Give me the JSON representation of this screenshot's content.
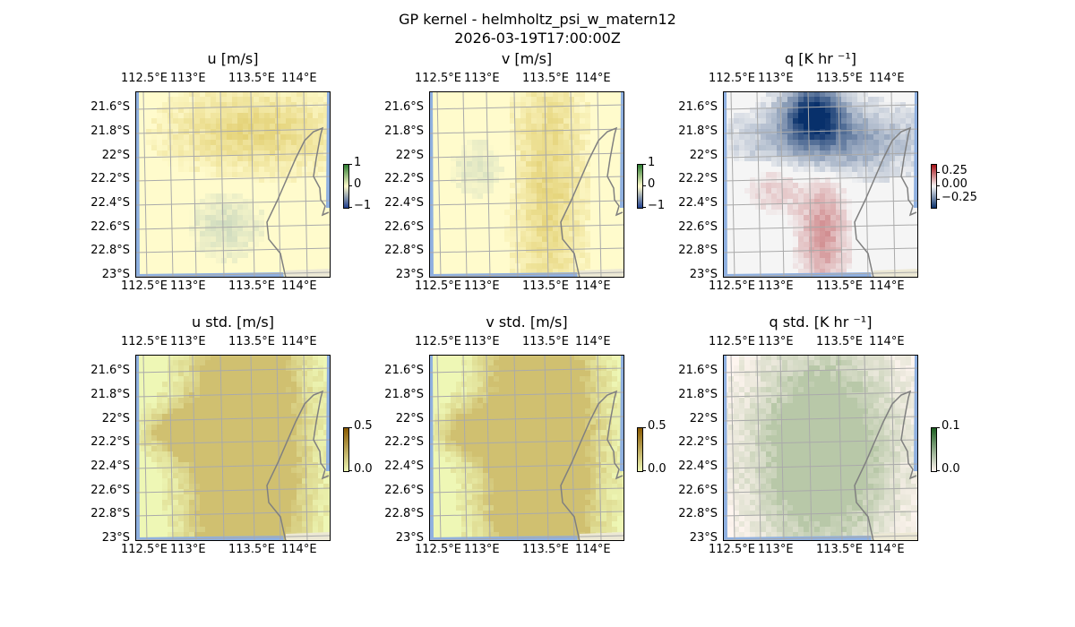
{
  "figure": {
    "title": "GP kernel - helmholtz_psi_w_matern12",
    "subtitle": "2026-03-19T17:00:00Z"
  },
  "chart_data": [
    {
      "type": "heatmap",
      "title": "u [m/s]",
      "colorbar_ticks": [
        "1",
        "0",
        "−1"
      ],
      "clim": [
        -1,
        1
      ],
      "x_ticks": [
        "112.5°E",
        "113°E",
        "113.5°E",
        "114°E"
      ],
      "y_ticks": [
        "21.6°S",
        "21.8°S",
        "22°S",
        "22.2°S",
        "22.4°S",
        "22.6°S",
        "22.8°S",
        "23°S"
      ],
      "colors": {
        "low": "#1f3f8f",
        "mid": "#fffbcc",
        "high": "#2e7d32"
      },
      "grid": true
    },
    {
      "type": "heatmap",
      "title": "v [m/s]",
      "colorbar_ticks": [
        "1",
        "0",
        "−1"
      ],
      "clim": [
        -1,
        1
      ],
      "x_ticks": [
        "112.5°E",
        "113°E",
        "113.5°E",
        "114°E"
      ],
      "y_ticks": [
        "21.6°S",
        "21.8°S",
        "22°S",
        "22.2°S",
        "22.4°S",
        "22.6°S",
        "22.8°S",
        "23°S"
      ],
      "colors": {
        "low": "#1f3f8f",
        "mid": "#fffbcc",
        "high": "#2e7d32"
      },
      "grid": true
    },
    {
      "type": "heatmap",
      "title": "q [K hr ⁻¹]",
      "colorbar_ticks": [
        "0.25",
        "0.00",
        "−0.25"
      ],
      "clim": [
        -0.4,
        0.4
      ],
      "x_ticks": [
        "112.5°E",
        "113°E",
        "113.5°E",
        "114°E"
      ],
      "y_ticks": [
        "21.6°S",
        "21.8°S",
        "22°S",
        "22.2°S",
        "22.4°S",
        "22.6°S",
        "22.8°S",
        "23°S"
      ],
      "colors": {
        "low": "#08306b",
        "mid": "#f5f5f5",
        "high": "#a50f15"
      },
      "grid": true
    },
    {
      "type": "heatmap",
      "title": "u std. [m/s]",
      "colorbar_ticks": [
        "0.5",
        "0.0"
      ],
      "clim": [
        0,
        0.5
      ],
      "x_ticks": [
        "112.5°E",
        "113°E",
        "113.5°E",
        "114°E"
      ],
      "y_ticks": [
        "21.6°S",
        "21.8°S",
        "22°S",
        "22.2°S",
        "22.4°S",
        "22.6°S",
        "22.8°S",
        "23°S"
      ],
      "colors": {
        "low": "#eef7b5",
        "high": "#8a5a00"
      },
      "grid": true
    },
    {
      "type": "heatmap",
      "title": "v std. [m/s]",
      "colorbar_ticks": [
        "0.5",
        "0.0"
      ],
      "clim": [
        0,
        0.5
      ],
      "x_ticks": [
        "112.5°E",
        "113°E",
        "113.5°E",
        "114°E"
      ],
      "y_ticks": [
        "21.6°S",
        "21.8°S",
        "22°S",
        "22.2°S",
        "22.4°S",
        "22.6°S",
        "22.8°S",
        "23°S"
      ],
      "colors": {
        "low": "#eef7b5",
        "high": "#8a5a00"
      },
      "grid": true
    },
    {
      "type": "heatmap",
      "title": "q std. [K hr ⁻¹]",
      "colorbar_ticks": [
        "0.1",
        "0.0"
      ],
      "clim": [
        0,
        0.1
      ],
      "x_ticks": [
        "112.5°E",
        "113°E",
        "113.5°E",
        "114°E"
      ],
      "y_ticks": [
        "21.6°S",
        "21.8°S",
        "22°S",
        "22.2°S",
        "22.4°S",
        "22.6°S",
        "22.8°S",
        "23°S"
      ],
      "colors": {
        "low": "#fff5f0",
        "high": "#1b5e20"
      },
      "grid": true
    }
  ]
}
